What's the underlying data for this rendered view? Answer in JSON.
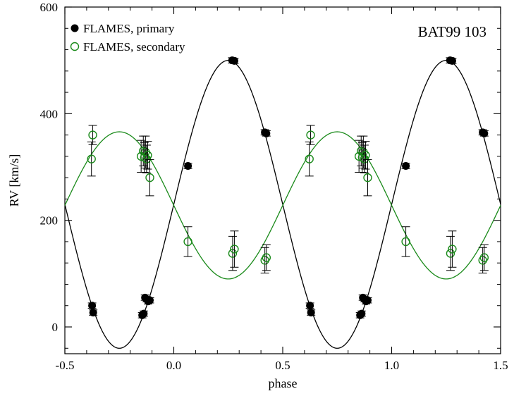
{
  "chart_data": {
    "type": "scatter",
    "title": "BAT99 103",
    "xlabel": "phase",
    "ylabel": "RV [km/s]",
    "xlim": [
      -0.5,
      1.5
    ],
    "ylim": [
      -50,
      600
    ],
    "x_ticks": [
      -0.5,
      0.0,
      0.5,
      1.0,
      1.5
    ],
    "x_tick_labels": [
      "-0.5",
      "0.0",
      "0.5",
      "1.0",
      "1.5"
    ],
    "y_ticks": [
      0,
      200,
      400,
      600
    ],
    "y_tick_labels": [
      "0",
      "200",
      "400",
      "600"
    ],
    "grid": false,
    "legend_position": "top-left",
    "series": [
      {
        "name": "FLAMES, primary",
        "color": "#000000",
        "marker": "filled-circle",
        "points": [
          {
            "x": -0.375,
            "y": 40,
            "err": 5
          },
          {
            "x": -0.37,
            "y": 27,
            "err": 5
          },
          {
            "x": -0.145,
            "y": 22,
            "err": 5
          },
          {
            "x": -0.138,
            "y": 25,
            "err": 5
          },
          {
            "x": -0.132,
            "y": 55,
            "err": 5
          },
          {
            "x": -0.125,
            "y": 52,
            "err": 5
          },
          {
            "x": -0.118,
            "y": 48,
            "err": 5
          },
          {
            "x": -0.11,
            "y": 50,
            "err": 5
          },
          {
            "x": 0.065,
            "y": 302,
            "err": 5
          },
          {
            "x": 0.268,
            "y": 500,
            "err": 5
          },
          {
            "x": 0.278,
            "y": 499,
            "err": 5
          },
          {
            "x": 0.418,
            "y": 365,
            "err": 5
          },
          {
            "x": 0.425,
            "y": 363,
            "err": 5
          },
          {
            "x": 0.625,
            "y": 40,
            "err": 5
          },
          {
            "x": 0.63,
            "y": 27,
            "err": 5
          },
          {
            "x": 0.855,
            "y": 22,
            "err": 5
          },
          {
            "x": 0.862,
            "y": 25,
            "err": 5
          },
          {
            "x": 0.868,
            "y": 55,
            "err": 5
          },
          {
            "x": 0.875,
            "y": 52,
            "err": 5
          },
          {
            "x": 0.882,
            "y": 48,
            "err": 5
          },
          {
            "x": 0.89,
            "y": 50,
            "err": 5
          },
          {
            "x": 1.065,
            "y": 302,
            "err": 5
          },
          {
            "x": 1.268,
            "y": 500,
            "err": 5
          },
          {
            "x": 1.278,
            "y": 499,
            "err": 5
          },
          {
            "x": 1.418,
            "y": 365,
            "err": 5
          },
          {
            "x": 1.425,
            "y": 363,
            "err": 5
          }
        ],
        "fit": {
          "gamma": 230,
          "K": 270,
          "phase_zero": 0.0
        }
      },
      {
        "name": "FLAMES, secondary",
        "color": "#1a8a1a",
        "marker": "open-circle",
        "points": [
          {
            "x": -0.378,
            "y": 315,
            "err": 32
          },
          {
            "x": -0.372,
            "y": 360,
            "err": 18
          },
          {
            "x": -0.15,
            "y": 320,
            "err": 30
          },
          {
            "x": -0.14,
            "y": 330,
            "err": 28
          },
          {
            "x": -0.135,
            "y": 318,
            "err": 28
          },
          {
            "x": -0.13,
            "y": 328,
            "err": 30
          },
          {
            "x": -0.125,
            "y": 315,
            "err": 26
          },
          {
            "x": -0.12,
            "y": 322,
            "err": 26
          },
          {
            "x": -0.11,
            "y": 280,
            "err": 34
          },
          {
            "x": 0.065,
            "y": 160,
            "err": 28
          },
          {
            "x": 0.27,
            "y": 138,
            "err": 32
          },
          {
            "x": 0.278,
            "y": 146,
            "err": 34
          },
          {
            "x": 0.418,
            "y": 125,
            "err": 24
          },
          {
            "x": 0.425,
            "y": 130,
            "err": 24
          },
          {
            "x": 0.622,
            "y": 315,
            "err": 32
          },
          {
            "x": 0.628,
            "y": 360,
            "err": 18
          },
          {
            "x": 0.85,
            "y": 320,
            "err": 30
          },
          {
            "x": 0.86,
            "y": 330,
            "err": 28
          },
          {
            "x": 0.865,
            "y": 318,
            "err": 28
          },
          {
            "x": 0.87,
            "y": 328,
            "err": 30
          },
          {
            "x": 0.875,
            "y": 315,
            "err": 26
          },
          {
            "x": 0.88,
            "y": 322,
            "err": 26
          },
          {
            "x": 0.89,
            "y": 280,
            "err": 34
          },
          {
            "x": 1.065,
            "y": 160,
            "err": 28
          },
          {
            "x": 1.27,
            "y": 138,
            "err": 32
          },
          {
            "x": 1.278,
            "y": 146,
            "err": 34
          },
          {
            "x": 1.418,
            "y": 125,
            "err": 24
          },
          {
            "x": 1.425,
            "y": 130,
            "err": 24
          }
        ],
        "fit": {
          "gamma": 228,
          "K": 138,
          "phase_zero": 0.0
        }
      }
    ]
  }
}
